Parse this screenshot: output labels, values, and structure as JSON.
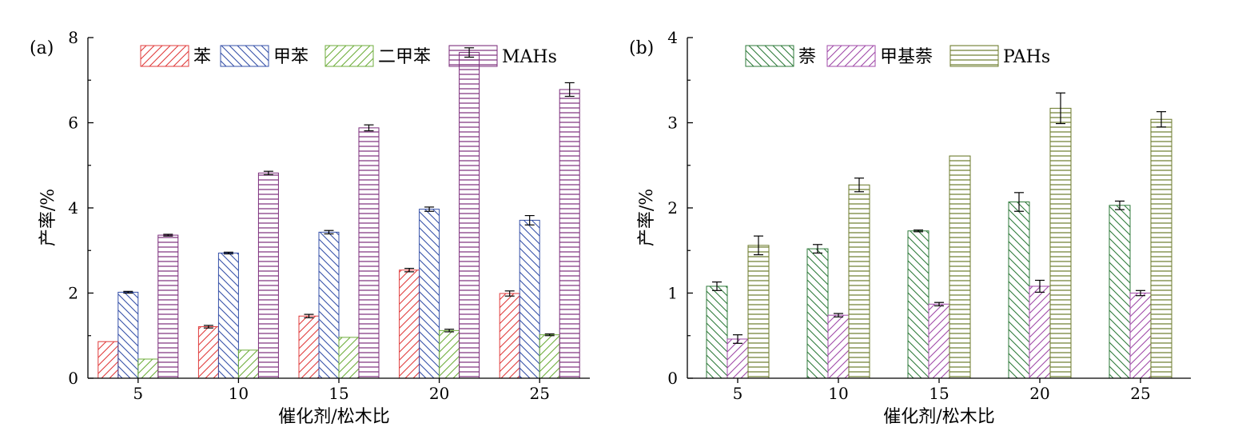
{
  "chart_data": [
    {
      "type": "bar",
      "panel_label": "(a)",
      "xlabel": "催化剂/松木比",
      "ylabel": "产率/%",
      "categories": [
        "5",
        "10",
        "15",
        "20",
        "25"
      ],
      "ylim": [
        0,
        8
      ],
      "yticks": [
        "0",
        "2",
        "4",
        "6",
        "8"
      ],
      "legend_position": "top",
      "series": [
        {
          "name": "苯",
          "color": "#e03c3c",
          "hatch": "diag-up",
          "values": [
            0.86,
            1.21,
            1.46,
            2.54,
            1.99
          ],
          "errors": [
            0.0,
            0.03,
            0.04,
            0.04,
            0.06
          ]
        },
        {
          "name": "甲苯",
          "color": "#3550a8",
          "hatch": "diag-down",
          "values": [
            2.02,
            2.94,
            3.43,
            3.97,
            3.71
          ],
          "errors": [
            0.02,
            0.02,
            0.04,
            0.05,
            0.11
          ]
        },
        {
          "name": "二甲苯",
          "color": "#6fae3c",
          "hatch": "diag-up",
          "values": [
            0.45,
            0.66,
            0.96,
            1.12,
            1.02
          ],
          "errors": [
            0.0,
            0.0,
            0.0,
            0.03,
            0.02
          ]
        },
        {
          "name": "MAHs",
          "color": "#7b2c7b",
          "hatch": "horizontal",
          "values": [
            3.36,
            4.82,
            5.88,
            7.65,
            6.78
          ],
          "errors": [
            0.02,
            0.04,
            0.07,
            0.11,
            0.16
          ]
        }
      ]
    },
    {
      "type": "bar",
      "panel_label": "(b)",
      "xlabel": "催化剂/松木比",
      "ylabel": "产率/%",
      "categories": [
        "5",
        "10",
        "15",
        "20",
        "25"
      ],
      "ylim": [
        0,
        4
      ],
      "yticks": [
        "0",
        "1",
        "2",
        "3",
        "4"
      ],
      "legend_position": "top",
      "series": [
        {
          "name": "萘",
          "color": "#2e7a3a",
          "hatch": "diag-down",
          "values": [
            1.08,
            1.52,
            1.73,
            2.07,
            2.03
          ],
          "errors": [
            0.05,
            0.05,
            0.01,
            0.11,
            0.05
          ]
        },
        {
          "name": "甲基萘",
          "color": "#a04aa8",
          "hatch": "diag-up",
          "values": [
            0.46,
            0.74,
            0.87,
            1.08,
            1.0
          ],
          "errors": [
            0.05,
            0.02,
            0.02,
            0.07,
            0.03
          ]
        },
        {
          "name": "PAHs",
          "color": "#6b7a2a",
          "hatch": "horizontal",
          "values": [
            1.56,
            2.27,
            2.61,
            3.17,
            3.04
          ],
          "errors": [
            0.11,
            0.08,
            0.0,
            0.18,
            0.09
          ]
        }
      ]
    }
  ]
}
